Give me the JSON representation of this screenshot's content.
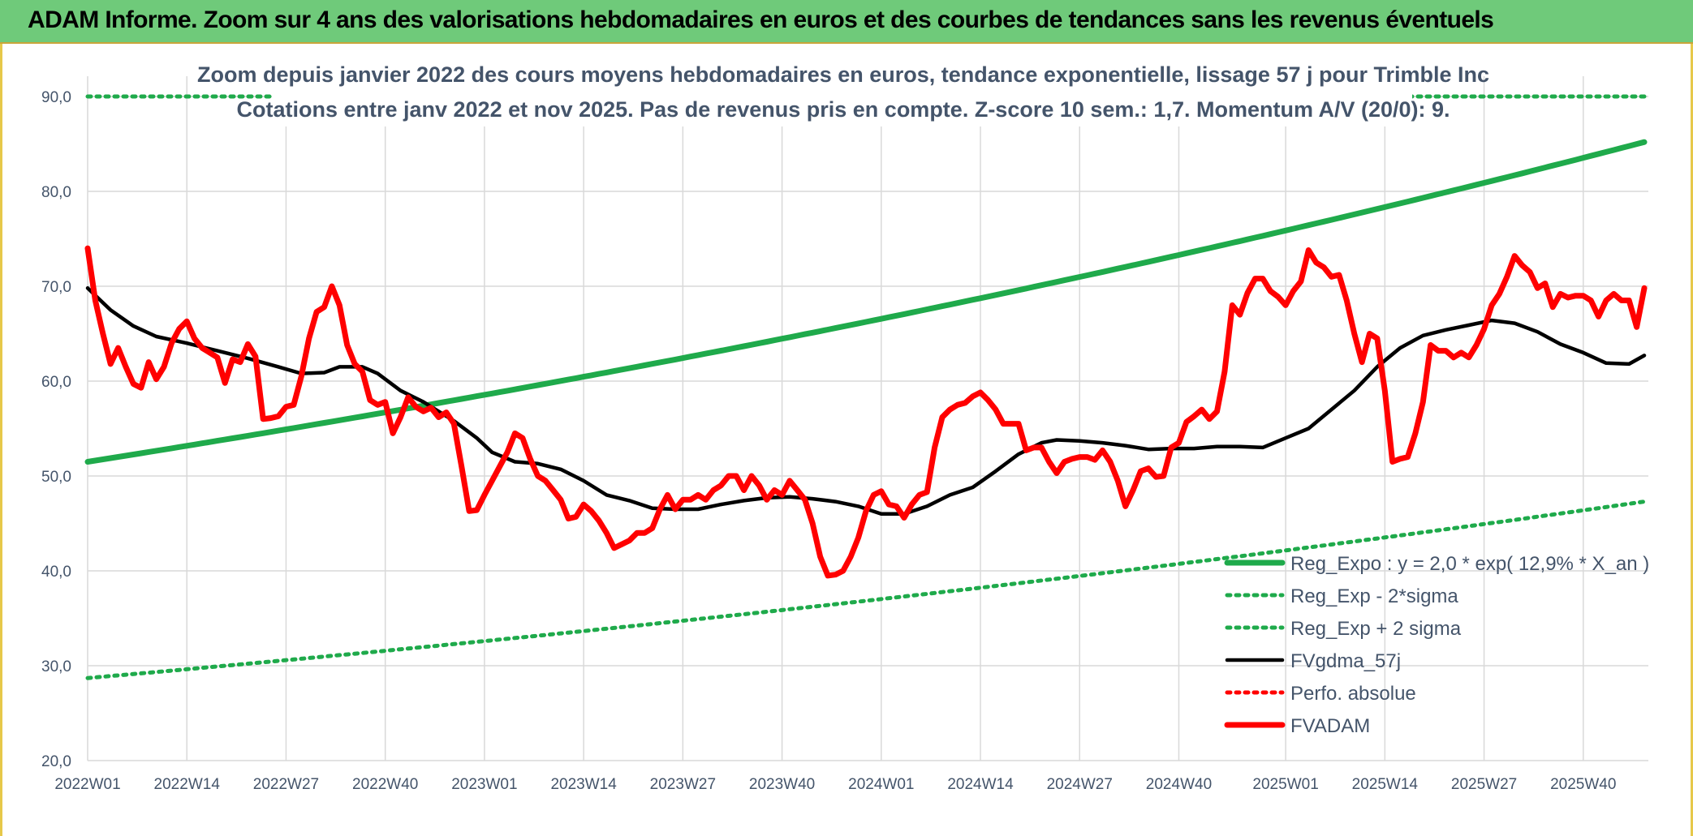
{
  "header": {
    "title": "ADAM Informe. Zoom sur 4 ans des valorisations hebdomadaires en euros et des courbes de tendances sans les revenus éventuels"
  },
  "chart_data": {
    "type": "line",
    "title": "Zoom depuis janvier 2022 des cours moyens hebdomadaires en euros, tendance exponentielle, lissage 57 j pour Trimble Inc",
    "subtitle": "Cotations entre janv 2022 et nov 2025. Pas de revenus pris en compte. Z-score 10 sem.: 1,7. Momentum A/V (20/0): 9.",
    "xlabel": "",
    "ylabel": "",
    "ylim": [
      20,
      90
    ],
    "yticks": [
      "20,0",
      "30,0",
      "40,0",
      "50,0",
      "60,0",
      "70,0",
      "80,0",
      "90,0"
    ],
    "week_count": 205,
    "x_tick_labels": [
      {
        "week": 0,
        "label": "2022W01"
      },
      {
        "week": 13,
        "label": "2022W14"
      },
      {
        "week": 26,
        "label": "2022W27"
      },
      {
        "week": 39,
        "label": "2022W40"
      },
      {
        "week": 52,
        "label": "2023W01"
      },
      {
        "week": 65,
        "label": "2023W14"
      },
      {
        "week": 78,
        "label": "2023W27"
      },
      {
        "week": 91,
        "label": "2023W40"
      },
      {
        "week": 104,
        "label": "2024W01"
      },
      {
        "week": 117,
        "label": "2024W14"
      },
      {
        "week": 130,
        "label": "2024W27"
      },
      {
        "week": 143,
        "label": "2024W40"
      },
      {
        "week": 157,
        "label": "2025W01"
      },
      {
        "week": 170,
        "label": "2025W14"
      },
      {
        "week": 183,
        "label": "2025W27"
      },
      {
        "week": 196,
        "label": "2025W40"
      }
    ],
    "grid": true,
    "legend_position": "bottom-right",
    "series": [
      {
        "name": "Reg_Expo : y = 2,0 * exp( 12,9% *  X_an )",
        "color": "#1faa4b",
        "style": "solid",
        "kind": "exp",
        "start": 51.5,
        "end": 85.2
      },
      {
        "name": "Reg_Exp - 2*sigma",
        "color": "#1faa4b",
        "style": "dotted",
        "kind": "exp",
        "start": 28.7,
        "end": 47.3
      },
      {
        "name": "Reg_Exp + 2 sigma",
        "color": "#1faa4b",
        "style": "dotted",
        "kind": "exp",
        "start": 90.0,
        "end": 90.0
      },
      {
        "name": "FVgdma_57j",
        "color": "#000000",
        "style": "solid",
        "kind": "points",
        "points": [
          [
            0,
            69.8
          ],
          [
            3,
            67.5
          ],
          [
            6,
            65.8
          ],
          [
            9,
            64.7
          ],
          [
            13,
            64
          ],
          [
            17,
            63.2
          ],
          [
            21,
            62.4
          ],
          [
            25,
            61.5
          ],
          [
            28,
            60.8
          ],
          [
            31,
            60.9
          ],
          [
            33,
            61.5
          ],
          [
            36,
            61.5
          ],
          [
            38,
            60.8
          ],
          [
            41,
            59
          ],
          [
            44,
            57.8
          ],
          [
            48,
            55.8
          ],
          [
            51,
            54
          ],
          [
            53,
            52.5
          ],
          [
            56,
            51.5
          ],
          [
            59,
            51.3
          ],
          [
            62,
            50.7
          ],
          [
            65,
            49.5
          ],
          [
            68,
            48
          ],
          [
            71,
            47.4
          ],
          [
            74,
            46.6
          ],
          [
            77,
            46.5
          ],
          [
            80,
            46.5
          ],
          [
            83,
            47
          ],
          [
            86,
            47.4
          ],
          [
            89,
            47.7
          ],
          [
            92,
            47.8
          ],
          [
            95,
            47.6
          ],
          [
            98,
            47.3
          ],
          [
            101,
            46.8
          ],
          [
            104,
            46
          ],
          [
            107,
            46
          ],
          [
            110,
            46.8
          ],
          [
            113,
            48
          ],
          [
            116,
            48.8
          ],
          [
            119,
            50.5
          ],
          [
            122,
            52.3
          ],
          [
            125,
            53.5
          ],
          [
            127,
            53.8
          ],
          [
            130,
            53.7
          ],
          [
            133,
            53.5
          ],
          [
            136,
            53.2
          ],
          [
            139,
            52.8
          ],
          [
            142,
            52.9
          ],
          [
            145,
            52.9
          ],
          [
            148,
            53.1
          ],
          [
            151,
            53.1
          ],
          [
            154,
            53
          ],
          [
            157,
            54
          ],
          [
            160,
            55
          ],
          [
            163,
            57
          ],
          [
            166,
            59
          ],
          [
            169,
            61.5
          ],
          [
            172,
            63.5
          ],
          [
            175,
            64.8
          ],
          [
            178,
            65.4
          ],
          [
            181,
            65.9
          ],
          [
            184,
            66.4
          ],
          [
            187,
            66.1
          ],
          [
            190,
            65.2
          ],
          [
            193,
            63.9
          ],
          [
            196,
            63
          ],
          [
            199,
            61.9
          ],
          [
            202,
            61.8
          ],
          [
            204,
            62.7
          ]
        ]
      },
      {
        "name": "Perfo. absolue",
        "color": "#ff0000",
        "style": "dotted",
        "kind": "none"
      },
      {
        "name": "FVADAM",
        "color": "#ff0000",
        "style": "solid",
        "kind": "points",
        "points": [
          [
            0,
            74
          ],
          [
            1,
            68.5
          ],
          [
            2,
            65
          ],
          [
            3,
            61.8
          ],
          [
            4,
            63.5
          ],
          [
            5,
            61.5
          ],
          [
            6,
            59.7
          ],
          [
            7,
            59.3
          ],
          [
            8,
            62
          ],
          [
            9,
            60.2
          ],
          [
            10,
            61.5
          ],
          [
            11,
            64
          ],
          [
            12,
            65.5
          ],
          [
            13,
            66.3
          ],
          [
            14,
            64.5
          ],
          [
            15,
            63.5
          ],
          [
            16,
            63
          ],
          [
            17,
            62.5
          ],
          [
            18,
            59.8
          ],
          [
            19,
            62.3
          ],
          [
            20,
            62
          ],
          [
            21,
            63.9
          ],
          [
            22,
            62.6
          ],
          [
            23,
            56
          ],
          [
            24,
            56.1
          ],
          [
            25,
            56.3
          ],
          [
            26,
            57.3
          ],
          [
            27,
            57.5
          ],
          [
            28,
            60.5
          ],
          [
            29,
            64.5
          ],
          [
            30,
            67.3
          ],
          [
            31,
            67.8
          ],
          [
            32,
            70
          ],
          [
            33,
            68
          ],
          [
            34,
            63.8
          ],
          [
            35,
            61.8
          ],
          [
            36,
            61
          ],
          [
            37,
            58
          ],
          [
            38,
            57.5
          ],
          [
            39,
            57.8
          ],
          [
            40,
            54.5
          ],
          [
            41,
            56.2
          ],
          [
            42,
            58.3
          ],
          [
            43,
            57.3
          ],
          [
            44,
            56.8
          ],
          [
            45,
            57.2
          ],
          [
            46,
            56.2
          ],
          [
            47,
            56.7
          ],
          [
            48,
            55.5
          ],
          [
            49,
            51
          ],
          [
            50,
            46.3
          ],
          [
            51,
            46.4
          ],
          [
            52,
            48
          ],
          [
            53,
            49.5
          ],
          [
            54,
            51
          ],
          [
            55,
            52.5
          ],
          [
            56,
            54.5
          ],
          [
            57,
            54
          ],
          [
            58,
            51.8
          ],
          [
            59,
            50
          ],
          [
            60,
            49.5
          ],
          [
            61,
            48.5
          ],
          [
            62,
            47.5
          ],
          [
            63,
            45.5
          ],
          [
            64,
            45.7
          ],
          [
            65,
            47
          ],
          [
            66,
            46.3
          ],
          [
            67,
            45.3
          ],
          [
            68,
            44
          ],
          [
            69,
            42.4
          ],
          [
            70,
            42.8
          ],
          [
            71,
            43.2
          ],
          [
            72,
            44
          ],
          [
            73,
            44
          ],
          [
            74,
            44.5
          ],
          [
            75,
            46.5
          ],
          [
            76,
            48
          ],
          [
            77,
            46.5
          ],
          [
            78,
            47.5
          ],
          [
            79,
            47.5
          ],
          [
            80,
            48
          ],
          [
            81,
            47.5
          ],
          [
            82,
            48.5
          ],
          [
            83,
            49
          ],
          [
            84,
            50
          ],
          [
            85,
            50
          ],
          [
            86,
            48.5
          ],
          [
            87,
            50
          ],
          [
            88,
            49
          ],
          [
            89,
            47.5
          ],
          [
            90,
            48.5
          ],
          [
            91,
            48
          ],
          [
            92,
            49.5
          ],
          [
            93,
            48.5
          ],
          [
            94,
            47.5
          ],
          [
            95,
            45
          ],
          [
            96,
            41.5
          ],
          [
            97,
            39.5
          ],
          [
            98,
            39.6
          ],
          [
            99,
            40
          ],
          [
            100,
            41.5
          ],
          [
            101,
            43.5
          ],
          [
            102,
            46.3
          ],
          [
            103,
            48
          ],
          [
            104,
            48.4
          ],
          [
            105,
            47
          ],
          [
            106,
            46.8
          ],
          [
            107,
            45.6
          ],
          [
            108,
            47
          ],
          [
            109,
            48
          ],
          [
            110,
            48.3
          ],
          [
            111,
            53
          ],
          [
            112,
            56.2
          ],
          [
            113,
            57
          ],
          [
            114,
            57.5
          ],
          [
            115,
            57.7
          ],
          [
            116,
            58.4
          ],
          [
            117,
            58.8
          ],
          [
            118,
            58
          ],
          [
            119,
            57
          ],
          [
            120,
            55.5
          ],
          [
            121,
            55.5
          ],
          [
            122,
            55.5
          ],
          [
            123,
            52.7
          ],
          [
            124,
            53
          ],
          [
            125,
            53
          ],
          [
            126,
            51.5
          ],
          [
            127,
            50.3
          ],
          [
            128,
            51.5
          ],
          [
            129,
            51.8
          ],
          [
            130,
            52
          ],
          [
            131,
            52
          ],
          [
            132,
            51.7
          ],
          [
            133,
            52.7
          ],
          [
            134,
            51.5
          ],
          [
            135,
            49.5
          ],
          [
            136,
            46.8
          ],
          [
            137,
            48.5
          ],
          [
            138,
            50.5
          ],
          [
            139,
            50.8
          ],
          [
            140,
            49.9
          ],
          [
            141,
            50
          ],
          [
            142,
            53
          ],
          [
            143,
            53.5
          ],
          [
            144,
            55.7
          ],
          [
            145,
            56.3
          ],
          [
            146,
            57
          ],
          [
            147,
            56
          ],
          [
            148,
            56.8
          ],
          [
            149,
            61
          ],
          [
            150,
            68
          ],
          [
            151,
            67
          ],
          [
            152,
            69.3
          ],
          [
            153,
            70.8
          ],
          [
            154,
            70.8
          ],
          [
            155,
            69.5
          ],
          [
            156,
            68.9
          ],
          [
            157,
            68
          ],
          [
            158,
            69.5
          ],
          [
            159,
            70.5
          ],
          [
            160,
            73.8
          ],
          [
            161,
            72.5
          ],
          [
            162,
            72
          ],
          [
            163,
            71
          ],
          [
            164,
            71.2
          ],
          [
            165,
            68.5
          ],
          [
            166,
            65
          ],
          [
            167,
            62
          ],
          [
            168,
            65
          ],
          [
            169,
            64.5
          ],
          [
            170,
            59
          ],
          [
            171,
            51.5
          ],
          [
            172,
            51.8
          ],
          [
            173,
            52
          ],
          [
            174,
            54.5
          ],
          [
            175,
            57.8
          ],
          [
            176,
            63.8
          ],
          [
            177,
            63.2
          ],
          [
            178,
            63.2
          ],
          [
            179,
            62.5
          ],
          [
            180,
            63
          ],
          [
            181,
            62.5
          ],
          [
            182,
            63.8
          ],
          [
            183,
            65.5
          ],
          [
            184,
            68
          ],
          [
            185,
            69.2
          ],
          [
            186,
            71
          ],
          [
            187,
            73.2
          ],
          [
            188,
            72.2
          ],
          [
            189,
            71.5
          ],
          [
            190,
            69.8
          ],
          [
            191,
            70.3
          ],
          [
            192,
            67.8
          ],
          [
            193,
            69.2
          ],
          [
            194,
            68.8
          ],
          [
            195,
            69
          ],
          [
            196,
            69
          ],
          [
            197,
            68.5
          ],
          [
            198,
            66.8
          ],
          [
            199,
            68.5
          ],
          [
            200,
            69.2
          ],
          [
            201,
            68.5
          ],
          [
            202,
            68.5
          ],
          [
            203,
            65.7
          ],
          [
            204,
            69.8
          ]
        ]
      }
    ]
  }
}
